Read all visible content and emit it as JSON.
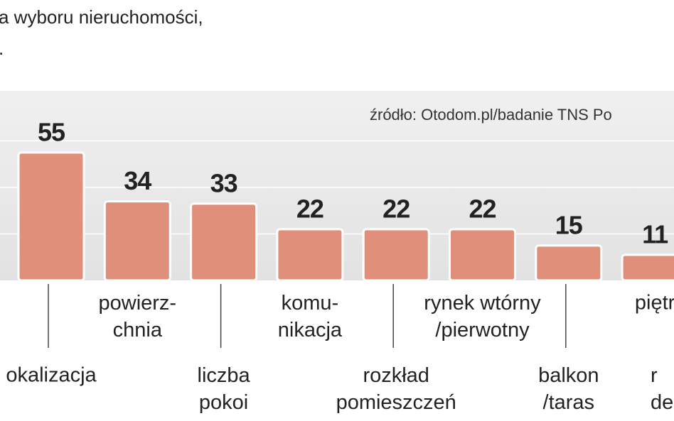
{
  "chart_data": {
    "type": "bar",
    "title_lines": [
      "a wyboru nieruchomości,",
      "."
    ],
    "source": "źródło: Otodom.pl/badanie TNS Po",
    "categories": [
      "okalizacja",
      "powierz-\nchnia",
      "liczba\npokoi",
      "komu-\nnikacja",
      "rozkład\npomieszczeń",
      "rynek wtórny\n/pierwotny",
      "balkon\n/taras",
      "piętr",
      "r\nde"
    ],
    "values": [
      55,
      34,
      33,
      22,
      22,
      22,
      15,
      11,
      null
    ],
    "color": "#e0907a",
    "ylim": [
      0,
      81.5
    ],
    "yticks": [
      20,
      40,
      60
    ],
    "grid": true
  }
}
